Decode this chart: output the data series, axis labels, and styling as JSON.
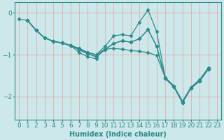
{
  "xlabel": "Humidex (Indice chaleur)",
  "bg_color": "#cce8ea",
  "grid_color": "#e8a0a0",
  "line_color": "#2e8b8b",
  "xlim": [
    -0.5,
    23.5
  ],
  "ylim": [
    -2.55,
    0.25
  ],
  "yticks": [
    0,
    -1,
    -2
  ],
  "xticks": [
    0,
    1,
    2,
    3,
    4,
    5,
    6,
    7,
    8,
    9,
    10,
    11,
    12,
    13,
    14,
    15,
    16,
    17,
    18,
    19,
    20,
    21,
    22,
    23
  ],
  "lines": [
    [
      null,
      -0.18,
      -0.42,
      -0.6,
      -0.68,
      -0.72,
      -0.78,
      -0.85,
      -0.95,
      -1.0,
      -0.8,
      -0.55,
      -0.52,
      -0.55,
      -0.22,
      0.07,
      -0.45,
      -1.55,
      -1.75,
      -2.12,
      -1.78,
      -1.6,
      -1.32,
      null
    ],
    [
      null,
      -0.18,
      -0.42,
      -0.6,
      -0.68,
      -0.72,
      -0.78,
      -0.85,
      -0.95,
      -1.0,
      -0.87,
      -0.85,
      -0.87,
      -0.9,
      -0.92,
      -0.95,
      -1.02,
      -1.55,
      -1.75,
      -2.12,
      -1.78,
      -1.6,
      -1.32,
      null
    ],
    [
      null,
      -0.18,
      -0.42,
      -0.6,
      -0.68,
      -0.72,
      -0.78,
      -0.95,
      -1.05,
      -1.1,
      null,
      null,
      null,
      null,
      null,
      null,
      null,
      null,
      null,
      null,
      null,
      null,
      null,
      null
    ],
    [
      null,
      -0.18,
      -0.42,
      -0.6,
      -0.68,
      -0.72,
      -0.78,
      -0.88,
      -0.98,
      -1.05,
      -0.88,
      -0.73,
      -0.67,
      -0.7,
      -0.62,
      -0.4,
      -0.8,
      -1.57,
      -1.77,
      -2.15,
      -1.8,
      -1.63,
      -1.35,
      null
    ],
    [
      -0.15,
      -0.18,
      -0.42,
      -0.6,
      -0.68,
      -0.72,
      -0.78,
      -0.88,
      -0.98,
      -1.05,
      -0.88,
      -0.73,
      -0.67,
      -0.7,
      -0.62,
      -0.4,
      -0.8,
      -1.57,
      -1.77,
      -2.15,
      -1.8,
      -1.63,
      -1.35,
      null
    ]
  ],
  "marker": "D",
  "marker_size": 2.5,
  "line_width": 0.9,
  "font_size": 6.5,
  "xlabel_fontsize": 7,
  "xlabel_bold": true
}
